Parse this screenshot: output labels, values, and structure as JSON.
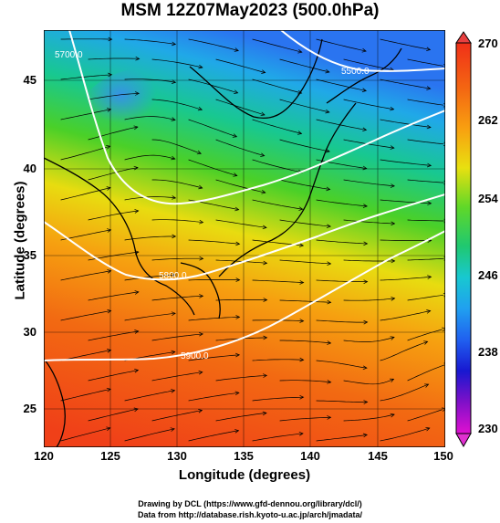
{
  "title": "MSM 12Z07May2023 (500.0hPa)",
  "xlabel": "Longitude (degrees)",
  "ylabel": "Latitude  (degrees)",
  "xticks": [
    "120",
    "125",
    "130",
    "135",
    "140",
    "145",
    "150"
  ],
  "yticks": [
    "45",
    "40",
    "35",
    "30",
    "25"
  ],
  "colorbar": {
    "ticks": [
      "270",
      "262",
      "254",
      "246",
      "238",
      "230"
    ],
    "min": 230,
    "max": 270
  },
  "contour_labels": [
    "5700.0",
    "5800.0",
    "5500.0",
    "5900.0"
  ],
  "credits": {
    "line1": "Drawing by DCL (https://www.gfd-dennou.org/library/dcl/)",
    "line2": "Data from http://database.rish.kyoto-u.ac.jp/arch/jmadata/"
  },
  "colors": {
    "warm": "#f04010",
    "orange": "#f88c10",
    "yellow": "#f0e410",
    "green": "#20d030",
    "cyan": "#18c8d0",
    "blue": "#2080f0"
  }
}
